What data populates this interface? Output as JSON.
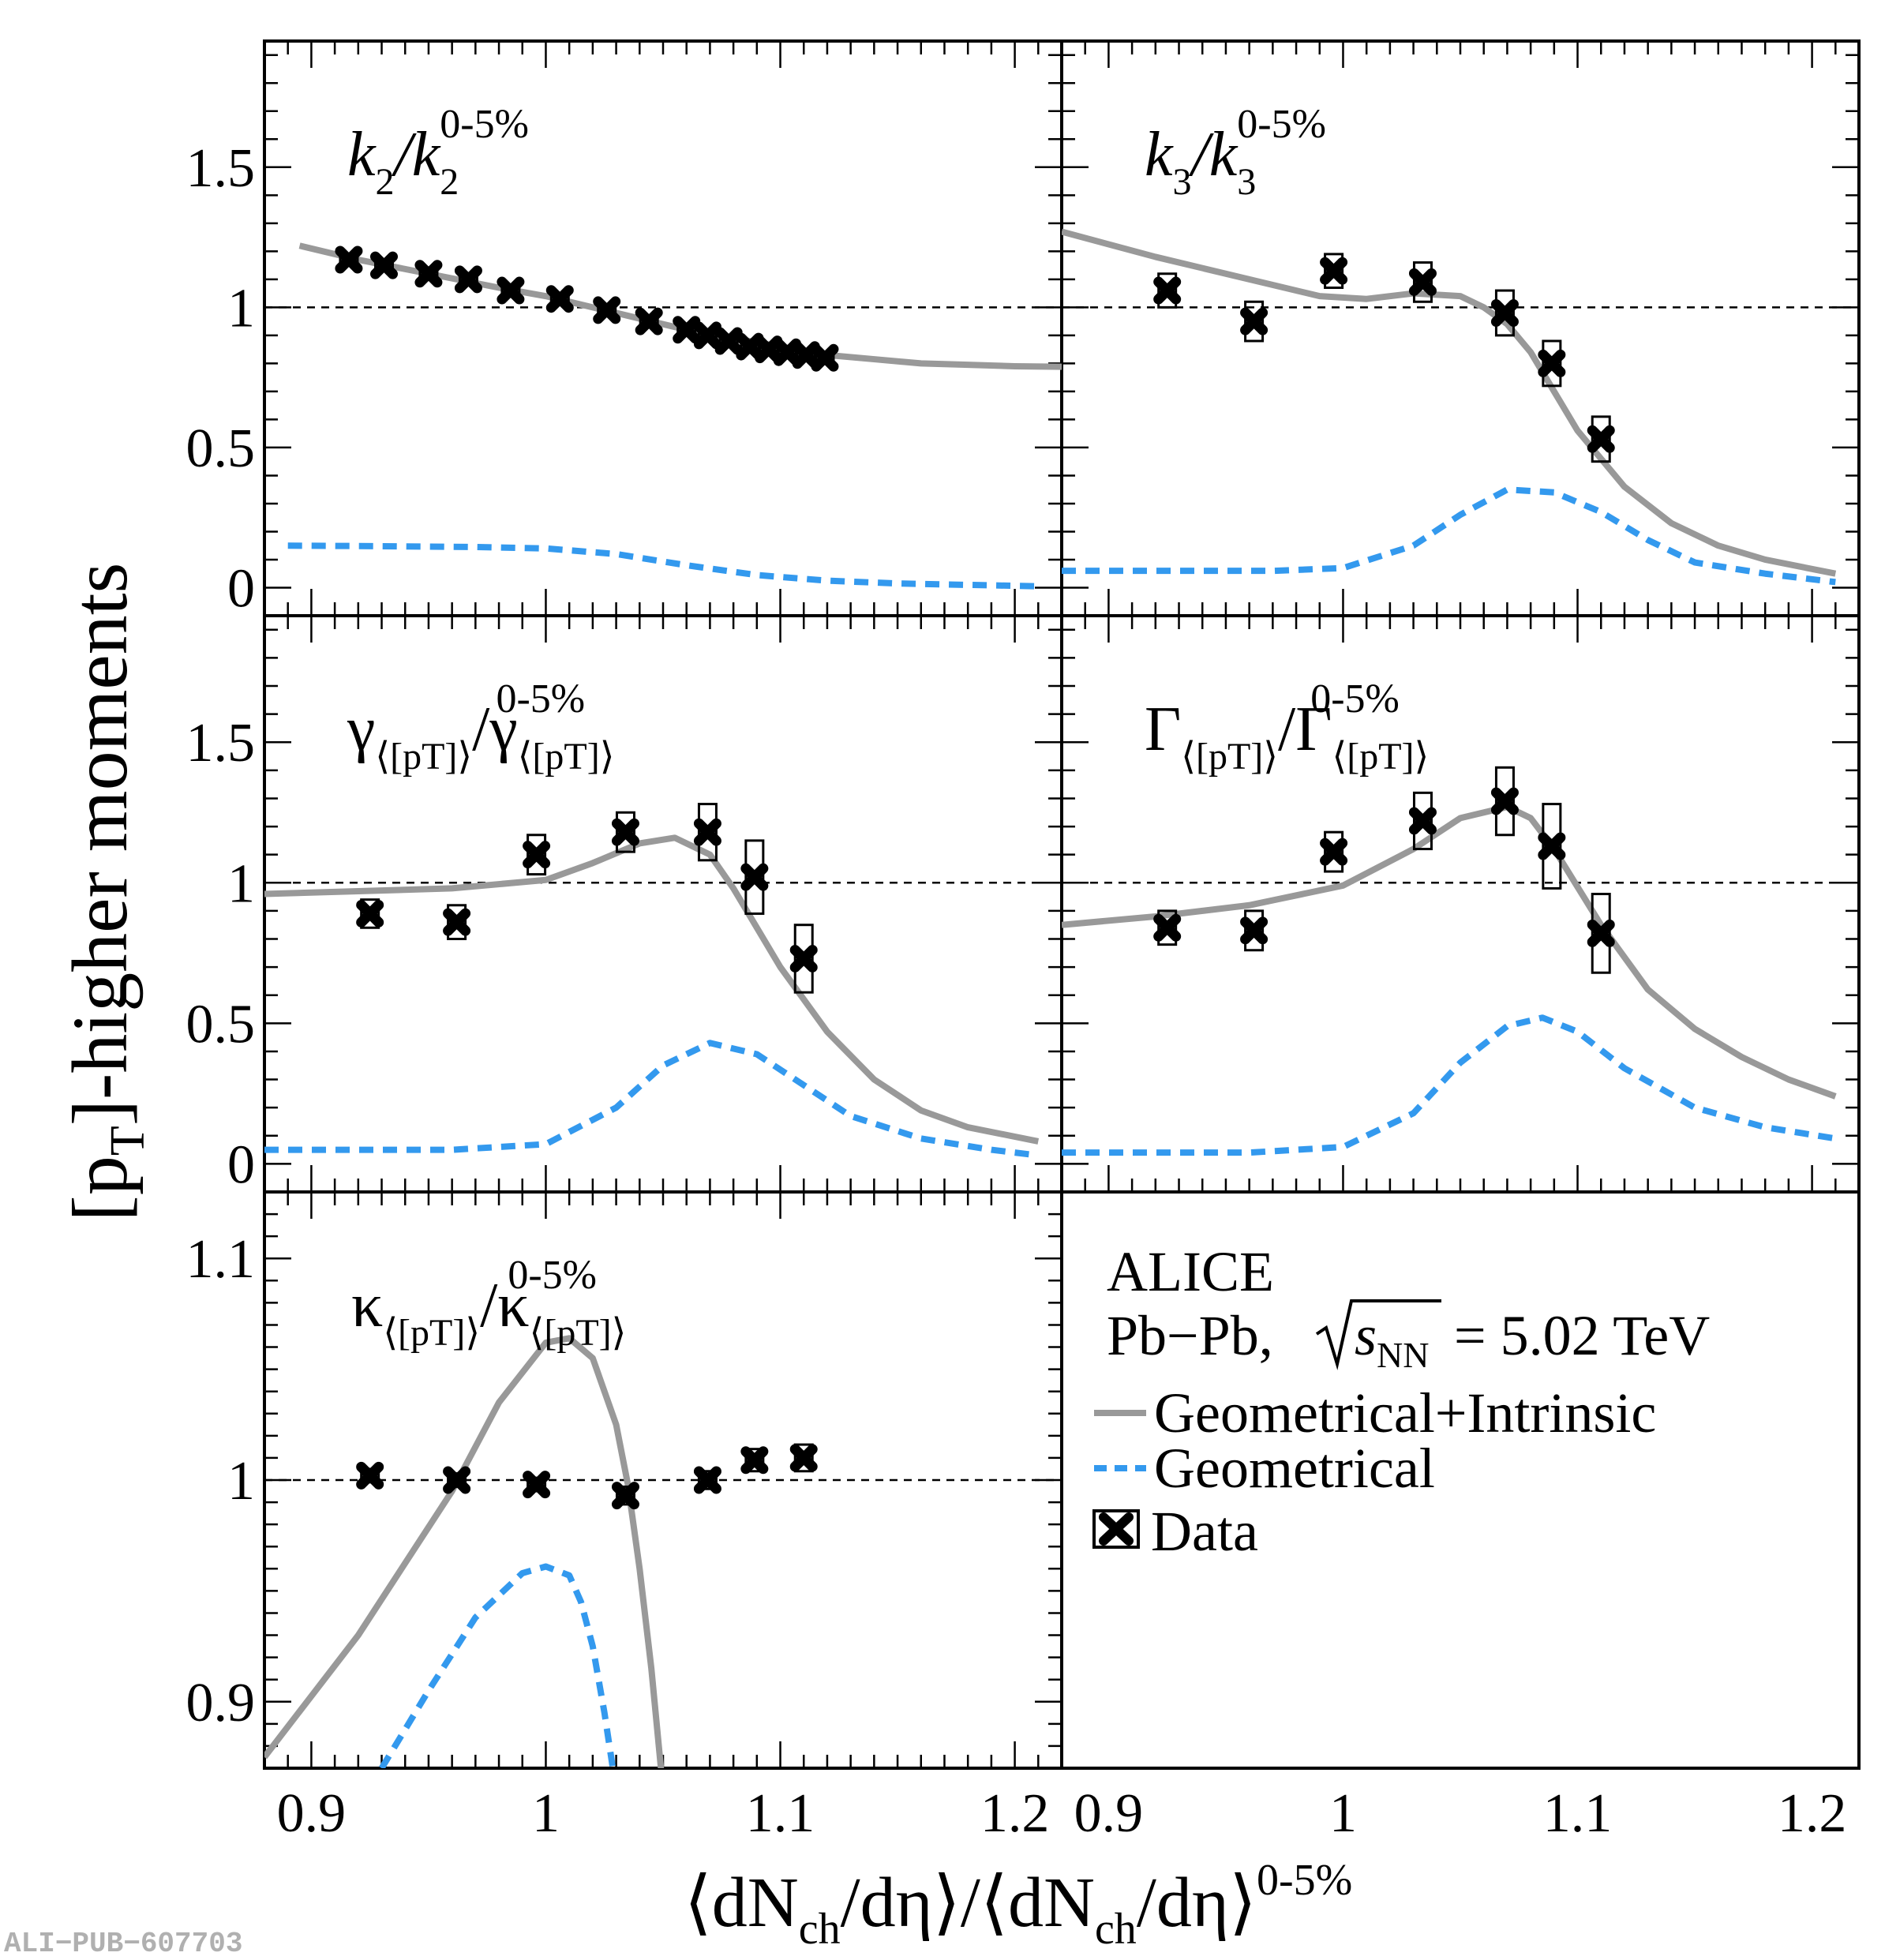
{
  "figure": {
    "y_title_main": "[p",
    "y_title_sub": "T",
    "y_title_rest": "]-higher moments",
    "x_title_main": "⟨dN",
    "x_title_sub": "ch",
    "x_title_mid": "/dη⟩/⟨dN",
    "x_title_sub2": "ch",
    "x_title_end": "/dη⟩",
    "x_title_sup": "0-5%",
    "footer": "ALI−PUB−607703"
  },
  "legend": {
    "experiment": "ALICE",
    "system": "Pb−Pb,",
    "energy_prefix": "s",
    "energy_sub": "NN",
    "energy_value": "= 5.02 TeV",
    "entries": [
      {
        "label": "Geometrical+Intrinsic",
        "style": "solid",
        "color": "#999999"
      },
      {
        "label": "Geometrical",
        "style": "dashed",
        "color": "#3399ee"
      },
      {
        "label": "Data",
        "style": "marker",
        "color": "#000000"
      }
    ]
  },
  "colors": {
    "solid": "#999999",
    "dashed": "#3399ee",
    "data": "#000000"
  },
  "chart_data": [
    {
      "type": "line",
      "panel": "k2",
      "label_main": "k",
      "label_sub": "2",
      "label_den": "/k",
      "label_den_sub": "2",
      "label_sup": "0-5%",
      "xlim": [
        0.88,
        1.22
      ],
      "ylim": [
        -0.1,
        1.95
      ],
      "y_ticks": [
        0,
        0.5,
        1,
        1.5
      ],
      "y_tick_labels": [
        "0",
        "0.5",
        "1",
        "1.5"
      ],
      "series": [
        {
          "name": "Geometrical+Intrinsic",
          "style": "solid",
          "x": [
            0.895,
            0.92,
            0.95,
            0.98,
            1.0,
            1.02,
            1.04,
            1.06,
            1.08,
            1.1,
            1.12,
            1.14,
            1.16,
            1.18,
            1.2,
            1.22
          ],
          "y": [
            1.22,
            1.17,
            1.12,
            1.07,
            1.04,
            1.0,
            0.96,
            0.92,
            0.89,
            0.86,
            0.83,
            0.815,
            0.8,
            0.795,
            0.79,
            0.788
          ]
        },
        {
          "name": "Geometrical",
          "style": "dashed",
          "x": [
            0.89,
            0.93,
            0.97,
            1.0,
            1.03,
            1.06,
            1.09,
            1.12,
            1.15,
            1.18,
            1.21
          ],
          "y": [
            0.15,
            0.148,
            0.145,
            0.14,
            0.12,
            0.08,
            0.045,
            0.025,
            0.015,
            0.01,
            0.005
          ]
        },
        {
          "name": "Data",
          "style": "marker",
          "x": [
            0.916,
            0.931,
            0.95,
            0.967,
            0.985,
            1.006,
            1.026,
            1.044,
            1.06,
            1.069,
            1.078,
            1.087,
            1.095,
            1.103,
            1.111,
            1.119
          ],
          "y": [
            1.17,
            1.15,
            1.12,
            1.1,
            1.06,
            1.03,
            0.99,
            0.95,
            0.92,
            0.9,
            0.88,
            0.86,
            0.85,
            0.84,
            0.83,
            0.82
          ],
          "sys": [
            0.015,
            0.015,
            0.015,
            0.015,
            0.015,
            0.015,
            0.015,
            0.015,
            0.015,
            0.015,
            0.015,
            0.015,
            0.015,
            0.015,
            0.015,
            0.015
          ]
        }
      ]
    },
    {
      "type": "line",
      "panel": "k3",
      "label_main": "k",
      "label_sub": "3",
      "label_den": "/k",
      "label_den_sub": "3",
      "label_sup": "0-5%",
      "xlim": [
        0.88,
        1.22
      ],
      "ylim": [
        -0.1,
        1.95
      ],
      "y_ticks": [
        0,
        0.5,
        1,
        1.5
      ],
      "y_tick_labels": [],
      "series": [
        {
          "name": "Geometrical+Intrinsic",
          "style": "solid",
          "x": [
            0.88,
            0.92,
            0.96,
            0.99,
            1.01,
            1.03,
            1.05,
            1.06,
            1.07,
            1.08,
            1.09,
            1.1,
            1.12,
            1.14,
            1.16,
            1.18,
            1.21
          ],
          "y": [
            1.27,
            1.18,
            1.1,
            1.04,
            1.03,
            1.05,
            1.04,
            1.0,
            0.94,
            0.84,
            0.7,
            0.56,
            0.36,
            0.23,
            0.15,
            0.1,
            0.05
          ]
        },
        {
          "name": "Geometrical",
          "style": "dashed",
          "x": [
            0.88,
            0.93,
            0.97,
            1.0,
            1.03,
            1.05,
            1.07,
            1.09,
            1.11,
            1.13,
            1.15,
            1.18,
            1.21
          ],
          "y": [
            0.06,
            0.06,
            0.06,
            0.07,
            0.15,
            0.26,
            0.35,
            0.34,
            0.27,
            0.17,
            0.09,
            0.05,
            0.02
          ]
        },
        {
          "name": "Data",
          "style": "marker",
          "x": [
            0.925,
            0.962,
            0.996,
            1.034,
            1.069,
            1.089,
            1.11
          ],
          "y": [
            1.06,
            0.95,
            1.13,
            1.09,
            0.98,
            0.8,
            0.53
          ],
          "sys": [
            0.06,
            0.07,
            0.06,
            0.07,
            0.08,
            0.08,
            0.08
          ]
        }
      ]
    },
    {
      "type": "line",
      "panel": "gamma",
      "label_main": "γ",
      "label_sub": "⟨[pT]⟩",
      "label_den": "/γ",
      "label_den_sub": "⟨[pT]⟩",
      "label_sup": "0-5%",
      "xlim": [
        0.88,
        1.22
      ],
      "ylim": [
        -0.1,
        1.95
      ],
      "y_ticks": [
        0,
        0.5,
        1,
        1.5
      ],
      "y_tick_labels": [
        "0",
        "0.5",
        "1",
        "1.5"
      ],
      "series": [
        {
          "name": "Geometrical+Intrinsic",
          "style": "solid",
          "x": [
            0.88,
            0.92,
            0.96,
            1.0,
            1.02,
            1.04,
            1.055,
            1.07,
            1.08,
            1.1,
            1.12,
            1.14,
            1.16,
            1.18,
            1.21
          ],
          "y": [
            0.96,
            0.97,
            0.98,
            1.01,
            1.07,
            1.14,
            1.16,
            1.1,
            0.98,
            0.7,
            0.47,
            0.3,
            0.19,
            0.13,
            0.08
          ]
        },
        {
          "name": "Geometrical",
          "style": "dashed",
          "x": [
            0.88,
            0.92,
            0.96,
            1.0,
            1.03,
            1.05,
            1.07,
            1.09,
            1.11,
            1.13,
            1.16,
            1.19,
            1.21
          ],
          "y": [
            0.05,
            0.05,
            0.05,
            0.07,
            0.2,
            0.35,
            0.43,
            0.39,
            0.28,
            0.17,
            0.09,
            0.05,
            0.03
          ]
        },
        {
          "name": "Data",
          "style": "marker",
          "x": [
            0.925,
            0.962,
            0.996,
            1.034,
            1.069,
            1.089,
            1.11
          ],
          "y": [
            0.89,
            0.86,
            1.1,
            1.18,
            1.18,
            1.02,
            0.73
          ],
          "sys": [
            0.05,
            0.06,
            0.07,
            0.07,
            0.1,
            0.13,
            0.12
          ]
        }
      ]
    },
    {
      "type": "line",
      "panel": "Gamma",
      "label_main": "Γ",
      "label_sub": "⟨[pT]⟩",
      "label_den": "/Γ",
      "label_den_sub": "⟨[pT]⟩",
      "label_sup": "0-5%",
      "xlim": [
        0.88,
        1.22
      ],
      "ylim": [
        -0.1,
        1.95
      ],
      "y_ticks": [
        0,
        0.5,
        1,
        1.5
      ],
      "y_tick_labels": [],
      "series": [
        {
          "name": "Geometrical+Intrinsic",
          "style": "solid",
          "x": [
            0.88,
            0.92,
            0.96,
            1.0,
            1.03,
            1.05,
            1.07,
            1.08,
            1.09,
            1.11,
            1.13,
            1.15,
            1.17,
            1.19,
            1.21
          ],
          "y": [
            0.85,
            0.88,
            0.92,
            0.99,
            1.12,
            1.23,
            1.27,
            1.23,
            1.12,
            0.85,
            0.62,
            0.48,
            0.38,
            0.3,
            0.24
          ]
        },
        {
          "name": "Geometrical",
          "style": "dashed",
          "x": [
            0.88,
            0.92,
            0.96,
            1.0,
            1.03,
            1.05,
            1.07,
            1.085,
            1.1,
            1.12,
            1.15,
            1.18,
            1.21
          ],
          "y": [
            0.04,
            0.04,
            0.04,
            0.06,
            0.18,
            0.36,
            0.49,
            0.52,
            0.47,
            0.34,
            0.2,
            0.13,
            0.09
          ]
        },
        {
          "name": "Data",
          "style": "marker",
          "x": [
            0.925,
            0.962,
            0.996,
            1.034,
            1.069,
            1.089,
            1.11
          ],
          "y": [
            0.84,
            0.83,
            1.11,
            1.22,
            1.29,
            1.13,
            0.82
          ],
          "sys": [
            0.06,
            0.07,
            0.07,
            0.1,
            0.12,
            0.15,
            0.14
          ]
        }
      ]
    },
    {
      "type": "line",
      "panel": "kappa",
      "label_main": "κ",
      "label_sub": "⟨[pT]⟩",
      "label_den": "/κ",
      "label_den_sub": "⟨[pT]⟩",
      "label_sup": "0-5%",
      "xlim": [
        0.88,
        1.22
      ],
      "ylim": [
        0.87,
        1.13
      ],
      "y_ticks": [
        0.9,
        1.0,
        1.1
      ],
      "y_tick_labels": [
        "0.9",
        "1",
        "1.1"
      ],
      "series": [
        {
          "name": "Geometrical+Intrinsic",
          "style": "solid",
          "x": [
            0.88,
            0.92,
            0.96,
            0.98,
            1.0,
            1.01,
            1.02,
            1.03,
            1.035,
            1.04,
            1.045,
            1.05
          ],
          "y": [
            0.875,
            0.93,
            0.995,
            1.035,
            1.062,
            1.064,
            1.055,
            1.025,
            0.998,
            0.96,
            0.915,
            0.86
          ]
        },
        {
          "name": "Geometrical",
          "style": "dashed",
          "x": [
            0.93,
            0.95,
            0.97,
            0.99,
            1.0,
            1.01,
            1.015,
            1.02,
            1.025,
            1.03
          ],
          "y": [
            0.87,
            0.905,
            0.938,
            0.958,
            0.961,
            0.957,
            0.945,
            0.925,
            0.895,
            0.86
          ]
        },
        {
          "name": "Data",
          "style": "marker",
          "x": [
            0.925,
            0.962,
            0.996,
            1.034,
            1.069,
            1.089,
            1.11
          ],
          "y": [
            1.002,
            1.0,
            0.998,
            0.993,
            1.0,
            1.009,
            1.01
          ],
          "sys": [
            0.003,
            0.003,
            0.003,
            0.004,
            0.004,
            0.005,
            0.006
          ]
        }
      ]
    }
  ],
  "x_axes": [
    {
      "panel": "left",
      "ticks": [
        0.9,
        1.0,
        1.1,
        1.2
      ],
      "tick_labels": [
        "0.9",
        "1",
        "1.1",
        "1.2"
      ]
    },
    {
      "panel": "right",
      "ticks": [
        0.9,
        1.0,
        1.1,
        1.2
      ],
      "tick_labels": [
        "0.9",
        "1",
        "1.1",
        "1.2"
      ]
    }
  ]
}
